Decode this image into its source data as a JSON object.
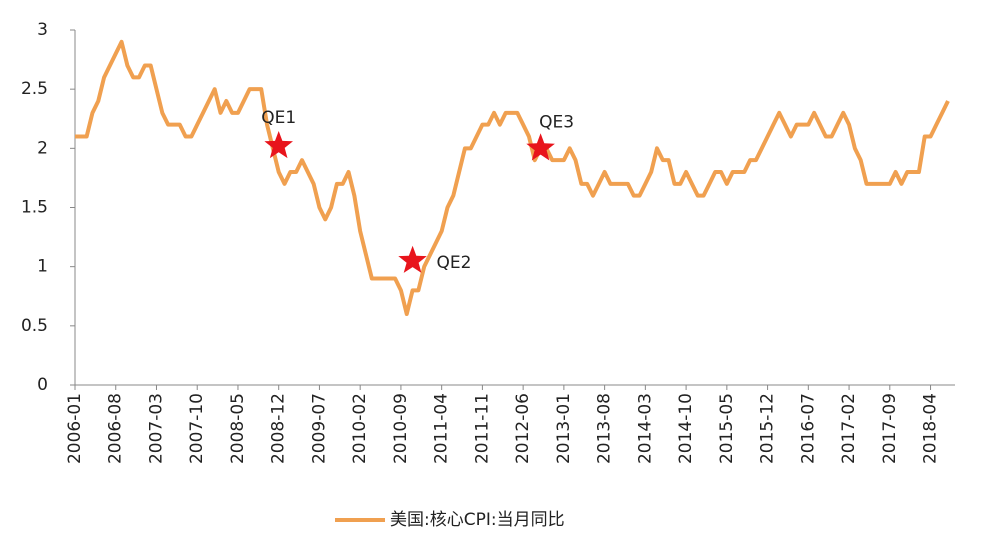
{
  "chart_data": {
    "type": "line",
    "categories": [
      "2006-01",
      null,
      null,
      null,
      null,
      null,
      null,
      "2006-08",
      null,
      null,
      null,
      null,
      null,
      null,
      "2007-03",
      null,
      null,
      null,
      null,
      null,
      null,
      "2007-10",
      null,
      null,
      null,
      null,
      null,
      null,
      "2008-05",
      null,
      null,
      null,
      null,
      null,
      null,
      "2008-12",
      null,
      null,
      null,
      null,
      null,
      null,
      "2009-07",
      null,
      null,
      null,
      null,
      null,
      null,
      "2010-02",
      null,
      null,
      null,
      null,
      null,
      null,
      "2010-09",
      null,
      null,
      null,
      null,
      null,
      null,
      "2011-04",
      null,
      null,
      null,
      null,
      null,
      null,
      "2011-11",
      null,
      null,
      null,
      null,
      null,
      null,
      "2012-06",
      null,
      null,
      null,
      null,
      null,
      null,
      "2013-01",
      null,
      null,
      null,
      null,
      null,
      null,
      "2013-08",
      null,
      null,
      null,
      null,
      null,
      null,
      "2014-03",
      null,
      null,
      null,
      null,
      null,
      null,
      "2014-10",
      null,
      null,
      null,
      null,
      null,
      null,
      "2015-05",
      null,
      null,
      null,
      null,
      null,
      null,
      "2015-12",
      null,
      null,
      null,
      null,
      null,
      null,
      "2016-07",
      null,
      null,
      null,
      null,
      null,
      null,
      "2017-02",
      null,
      null,
      null,
      null,
      null,
      null,
      "2017-09",
      null,
      null,
      null,
      null,
      null,
      null,
      "2018-04",
      null,
      null,
      null
    ],
    "series": [
      {
        "name": "美国:核心CPI:当月同比",
        "color": "#f0a050",
        "values": [
          2.1,
          2.1,
          2.1,
          2.3,
          2.4,
          2.6,
          2.7,
          2.8,
          2.9,
          2.7,
          2.6,
          2.6,
          2.7,
          2.7,
          2.5,
          2.3,
          2.2,
          2.2,
          2.2,
          2.1,
          2.1,
          2.2,
          2.3,
          2.4,
          2.5,
          2.3,
          2.4,
          2.3,
          2.3,
          2.4,
          2.5,
          2.5,
          2.5,
          2.2,
          2.0,
          1.8,
          1.7,
          1.8,
          1.8,
          1.9,
          1.8,
          1.7,
          1.5,
          1.4,
          1.5,
          1.7,
          1.7,
          1.8,
          1.6,
          1.3,
          1.1,
          0.9,
          0.9,
          0.9,
          0.9,
          0.9,
          0.8,
          0.6,
          0.8,
          0.8,
          1.0,
          1.1,
          1.2,
          1.3,
          1.5,
          1.6,
          1.8,
          2.0,
          2.0,
          2.1,
          2.2,
          2.2,
          2.3,
          2.2,
          2.3,
          2.3,
          2.3,
          2.2,
          2.1,
          1.9,
          2.0,
          2.0,
          1.9,
          1.9,
          1.9,
          2.0,
          1.9,
          1.7,
          1.7,
          1.6,
          1.7,
          1.8,
          1.7,
          1.7,
          1.7,
          1.7,
          1.6,
          1.6,
          1.7,
          1.8,
          2.0,
          1.9,
          1.9,
          1.7,
          1.7,
          1.8,
          1.7,
          1.6,
          1.6,
          1.7,
          1.8,
          1.8,
          1.7,
          1.8,
          1.8,
          1.8,
          1.9,
          1.9,
          2.0,
          2.1,
          2.2,
          2.3,
          2.2,
          2.1,
          2.2,
          2.2,
          2.2,
          2.3,
          2.2,
          2.1,
          2.1,
          2.2,
          2.3,
          2.2,
          2.0,
          1.9,
          1.7,
          1.7,
          1.7,
          1.7,
          1.7,
          1.8,
          1.7,
          1.8,
          1.8,
          1.8,
          2.1,
          2.1,
          2.2,
          2.3,
          2.4
        ]
      }
    ],
    "ylim": [
      0,
      3
    ],
    "yticks": [
      0,
      0.5,
      1,
      1.5,
      2,
      2.5,
      3
    ],
    "annotations": [
      {
        "text": "QE1",
        "index": 35,
        "y": 2.02
      },
      {
        "text": "QE2",
        "index": 58,
        "y": 1.05
      },
      {
        "text": "QE3",
        "index": 80,
        "y": 2.0
      }
    ],
    "marker_color": "#e8141c",
    "legend": "bottom"
  }
}
